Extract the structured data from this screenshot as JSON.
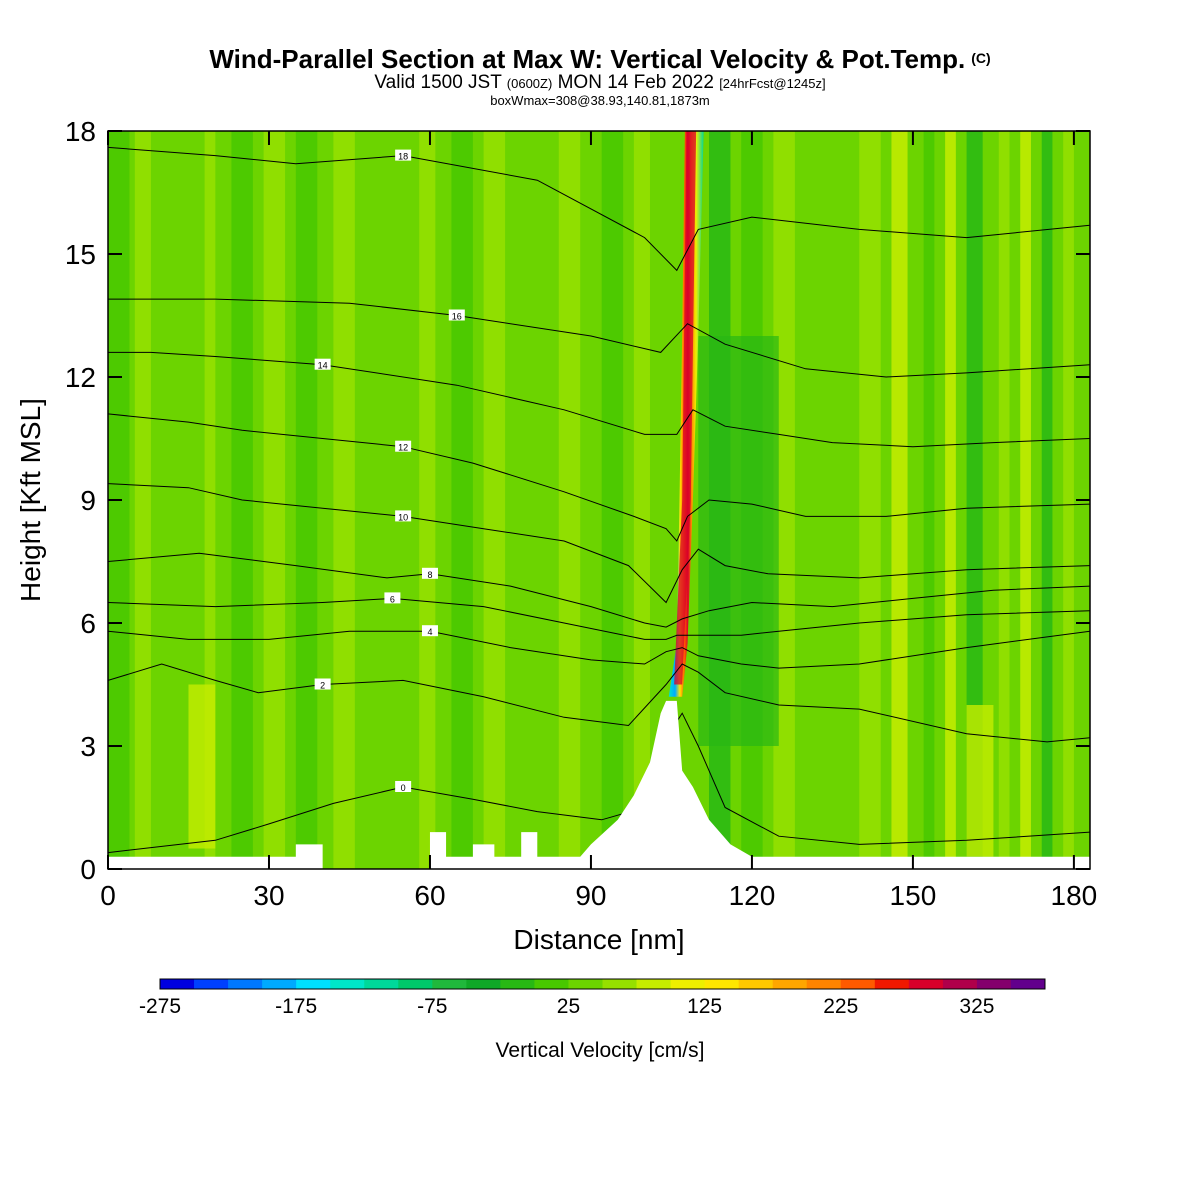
{
  "header": {
    "title": "Wind-Parallel Section at Max W: Vertical Velocity & Pot.Temp.",
    "copyright": "(C)",
    "subtitle_a": "Valid 1500 JST",
    "subtitle_b": "(0600Z)",
    "subtitle_c": "MON 14 Feb 2022",
    "subtitle_d": "[24hrFcst@1245z]",
    "info": "boxWmax=308@38.93,140.81,1873m"
  },
  "chart_data": {
    "type": "heatmap",
    "title": "Wind-Parallel Section at Max W: Vertical Velocity & Pot.Temp.",
    "xlabel": "Distance [nm]",
    "ylabel": "Height [Kft MSL]",
    "xlim": [
      0,
      183
    ],
    "ylim": [
      0,
      18
    ],
    "x_ticks": [
      0,
      30,
      60,
      90,
      120,
      150,
      180
    ],
    "y_ticks": [
      0,
      3,
      6,
      9,
      12,
      15,
      18
    ],
    "colorbar": {
      "label": "Vertical Velocity [cm/s]",
      "min": -275,
      "max": 375,
      "step": 25,
      "tick_labels": [
        -275,
        -175,
        -75,
        25,
        125,
        225,
        325
      ],
      "colors": [
        "#0000e0",
        "#0040ff",
        "#0078ff",
        "#00aaff",
        "#00e0ff",
        "#00e6c8",
        "#00d89a",
        "#00c86a",
        "#20b83c",
        "#10a828",
        "#28b814",
        "#48c800",
        "#6cd400",
        "#96e000",
        "#c6ec00",
        "#eeef00",
        "#ffe600",
        "#ffc800",
        "#ffa600",
        "#ff8400",
        "#ff5a00",
        "#f01800",
        "#d8002a",
        "#b0004a",
        "#84006c",
        "#62008c"
      ]
    },
    "updraft_max_cm_s": 308,
    "updraft_location": "38.93,140.81,1873m",
    "theta_contours": [
      {
        "label": "0",
        "points": [
          [
            0,
            0.4
          ],
          [
            20,
            0.7
          ],
          [
            30,
            1.1
          ],
          [
            42,
            1.6
          ],
          [
            55,
            2.0
          ],
          [
            68,
            1.7
          ],
          [
            80,
            1.4
          ],
          [
            92,
            1.2
          ],
          [
            100,
            1.5
          ],
          [
            104,
            3.2
          ],
          [
            107,
            3.8
          ],
          [
            110,
            3.0
          ],
          [
            115,
            1.5
          ],
          [
            125,
            0.8
          ],
          [
            140,
            0.6
          ],
          [
            160,
            0.7
          ],
          [
            183,
            0.9
          ]
        ]
      },
      {
        "label": "2",
        "points": [
          [
            0,
            4.6
          ],
          [
            10,
            5.0
          ],
          [
            20,
            4.6
          ],
          [
            28,
            4.3
          ],
          [
            40,
            4.5
          ],
          [
            55,
            4.6
          ],
          [
            70,
            4.2
          ],
          [
            85,
            3.7
          ],
          [
            97,
            3.5
          ],
          [
            104,
            4.5
          ],
          [
            107,
            5.0
          ],
          [
            110,
            4.8
          ],
          [
            115,
            4.3
          ],
          [
            125,
            4.0
          ],
          [
            140,
            3.9
          ],
          [
            160,
            3.3
          ],
          [
            175,
            3.1
          ],
          [
            183,
            3.2
          ]
        ]
      },
      {
        "label": "4",
        "points": [
          [
            0,
            5.8
          ],
          [
            15,
            5.6
          ],
          [
            30,
            5.6
          ],
          [
            45,
            5.8
          ],
          [
            60,
            5.8
          ],
          [
            75,
            5.4
          ],
          [
            90,
            5.1
          ],
          [
            100,
            5.0
          ],
          [
            104,
            5.3
          ],
          [
            107,
            5.4
          ],
          [
            110,
            5.2
          ],
          [
            118,
            5.0
          ],
          [
            125,
            4.9
          ],
          [
            140,
            5.0
          ],
          [
            160,
            5.4
          ],
          [
            183,
            5.8
          ]
        ]
      },
      {
        "label": "6",
        "points": [
          [
            0,
            6.5
          ],
          [
            20,
            6.4
          ],
          [
            40,
            6.5
          ],
          [
            53,
            6.6
          ],
          [
            70,
            6.4
          ],
          [
            85,
            6.0
          ],
          [
            100,
            5.6
          ],
          [
            104,
            5.6
          ],
          [
            106,
            5.7
          ],
          [
            110,
            5.7
          ],
          [
            118,
            5.7
          ],
          [
            125,
            5.8
          ],
          [
            140,
            6.0
          ],
          [
            160,
            6.2
          ],
          [
            183,
            6.3
          ]
        ]
      },
      {
        "label": "8",
        "points": [
          [
            0,
            7.5
          ],
          [
            17,
            7.7
          ],
          [
            35,
            7.4
          ],
          [
            52,
            7.1
          ],
          [
            60,
            7.2
          ],
          [
            75,
            6.9
          ],
          [
            90,
            6.4
          ],
          [
            100,
            6.0
          ],
          [
            104,
            5.9
          ],
          [
            107,
            6.1
          ],
          [
            112,
            6.3
          ],
          [
            120,
            6.5
          ],
          [
            135,
            6.4
          ],
          [
            150,
            6.6
          ],
          [
            165,
            6.8
          ],
          [
            183,
            6.9
          ]
        ]
      },
      {
        "label": "10",
        "points": [
          [
            0,
            9.4
          ],
          [
            15,
            9.3
          ],
          [
            25,
            9.0
          ],
          [
            40,
            8.8
          ],
          [
            55,
            8.6
          ],
          [
            70,
            8.3
          ],
          [
            85,
            8.0
          ],
          [
            97,
            7.4
          ],
          [
            104,
            6.5
          ],
          [
            107,
            7.3
          ],
          [
            110,
            7.8
          ],
          [
            115,
            7.4
          ],
          [
            123,
            7.2
          ],
          [
            140,
            7.1
          ],
          [
            160,
            7.3
          ],
          [
            183,
            7.4
          ]
        ]
      },
      {
        "label": "12",
        "points": [
          [
            0,
            11.1
          ],
          [
            15,
            10.9
          ],
          [
            25,
            10.7
          ],
          [
            40,
            10.5
          ],
          [
            55,
            10.3
          ],
          [
            68,
            9.9
          ],
          [
            85,
            9.2
          ],
          [
            98,
            8.6
          ],
          [
            104,
            8.3
          ],
          [
            106,
            8.0
          ],
          [
            108,
            8.6
          ],
          [
            112,
            9.0
          ],
          [
            120,
            8.9
          ],
          [
            130,
            8.6
          ],
          [
            145,
            8.6
          ],
          [
            160,
            8.8
          ],
          [
            183,
            8.9
          ]
        ]
      },
      {
        "label": "14",
        "points": [
          [
            0,
            12.6
          ],
          [
            8,
            12.6
          ],
          [
            20,
            12.5
          ],
          [
            40,
            12.3
          ],
          [
            65,
            11.8
          ],
          [
            85,
            11.2
          ],
          [
            100,
            10.6
          ],
          [
            106,
            10.6
          ],
          [
            109,
            11.2
          ],
          [
            115,
            10.8
          ],
          [
            125,
            10.6
          ],
          [
            135,
            10.4
          ],
          [
            150,
            10.3
          ],
          [
            165,
            10.4
          ],
          [
            183,
            10.5
          ]
        ]
      },
      {
        "label": "16",
        "points": [
          [
            0,
            13.9
          ],
          [
            20,
            13.9
          ],
          [
            45,
            13.8
          ],
          [
            65,
            13.5
          ],
          [
            90,
            13.0
          ],
          [
            103,
            12.6
          ],
          [
            108,
            13.3
          ],
          [
            115,
            12.8
          ],
          [
            130,
            12.2
          ],
          [
            145,
            12.0
          ],
          [
            160,
            12.1
          ],
          [
            183,
            12.3
          ]
        ]
      },
      {
        "label": "18",
        "points": [
          [
            0,
            17.6
          ],
          [
            20,
            17.4
          ],
          [
            35,
            17.2
          ],
          [
            55,
            17.4
          ],
          [
            80,
            16.8
          ],
          [
            100,
            15.4
          ],
          [
            106,
            14.6
          ],
          [
            110,
            15.6
          ],
          [
            120,
            15.9
          ],
          [
            140,
            15.6
          ],
          [
            160,
            15.4
          ],
          [
            183,
            15.7
          ]
        ]
      }
    ]
  }
}
